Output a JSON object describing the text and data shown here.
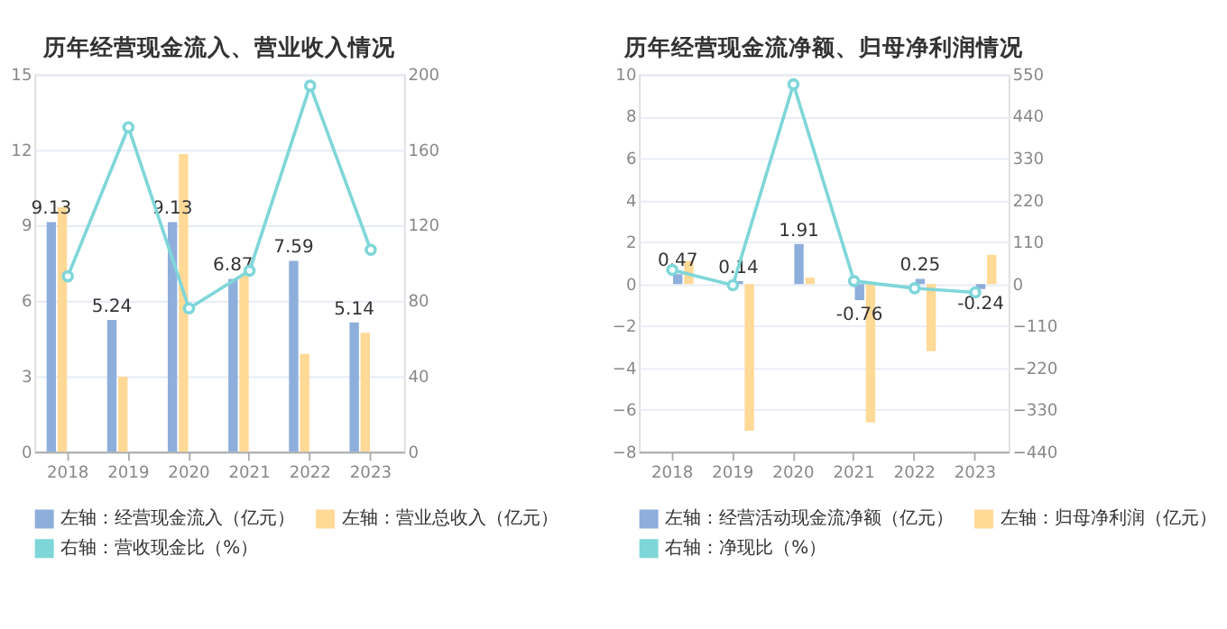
{
  "chart_data": [
    {
      "type": "bar",
      "title": "历年经营现金流入、营业收入情况",
      "categories": [
        "2018",
        "2019",
        "2020",
        "2021",
        "2022",
        "2023"
      ],
      "ylim": [
        0,
        15
      ],
      "yticks": [
        0,
        3,
        6,
        9,
        12,
        15
      ],
      "y2lim": [
        0,
        200
      ],
      "y2ticks": [
        0,
        40,
        80,
        120,
        160,
        200
      ],
      "grid": "y",
      "legend": "bottom",
      "series": [
        {
          "name": "左轴：经营现金流入（亿元）",
          "color": "#8eaedb",
          "values": [
            9.13,
            5.24,
            9.13,
            6.87,
            7.59,
            5.14
          ],
          "value_labels": [
            "9.13",
            "5.24",
            "9.13",
            "6.87",
            "7.59",
            "5.14"
          ]
        },
        {
          "name": "左轴：营业总收入（亿元）",
          "color": "#ffd996",
          "values": [
            9.72,
            2.98,
            11.83,
            7.02,
            3.89,
            4.73
          ]
        },
        {
          "name": "右轴：营收现金比（%）",
          "color": "#7fd6d9",
          "type": "line",
          "axis": "y2",
          "marker": "circle",
          "values": [
            93,
            172,
            76,
            96,
            194,
            107
          ]
        }
      ]
    },
    {
      "type": "bar",
      "title": "历年经营现金流净额、归母净利润情况",
      "categories": [
        "2018",
        "2019",
        "2020",
        "2021",
        "2022",
        "2023"
      ],
      "ylim": [
        -8,
        10
      ],
      "yticks": [
        -8,
        -6,
        -4,
        -2,
        0,
        2,
        4,
        6,
        8,
        10
      ],
      "y2lim": [
        -440,
        550
      ],
      "y2ticks": [
        -440,
        -330,
        -220,
        -110,
        0,
        110,
        220,
        330,
        440,
        550
      ],
      "grid": "y",
      "legend": "bottom",
      "series": [
        {
          "name": "左轴：经营活动现金流净额（亿元）",
          "color": "#8eaedb",
          "values": [
            0.47,
            0.14,
            1.91,
            -0.76,
            0.25,
            -0.24
          ],
          "value_labels": [
            "0.47",
            "0.14",
            "1.91",
            "-0.76",
            "0.25",
            "-0.24"
          ]
        },
        {
          "name": "左轴：归母净利润（亿元）",
          "color": "#ffd996",
          "values": [
            1.1,
            -7.0,
            0.3,
            -6.6,
            -3.2,
            1.4
          ]
        },
        {
          "name": "右轴：净现比（%）",
          "color": "#7fd6d9",
          "type": "line",
          "axis": "y2",
          "marker": "circle",
          "values": [
            37,
            -3,
            524,
            8,
            -11,
            -22
          ]
        }
      ]
    }
  ]
}
